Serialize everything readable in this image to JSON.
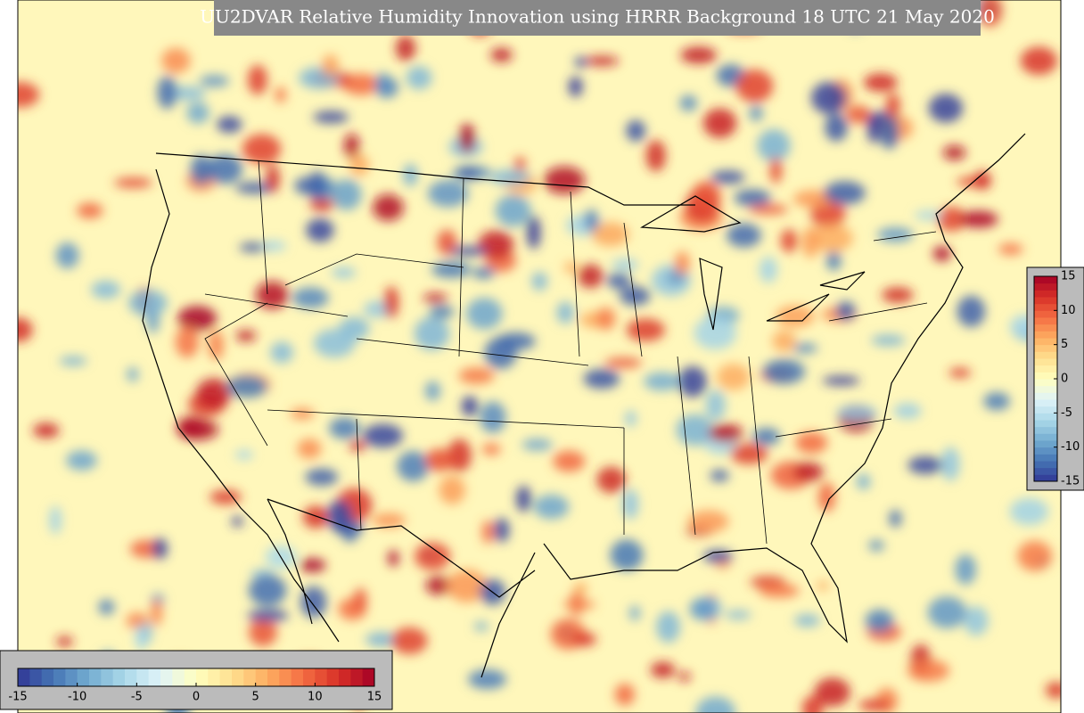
{
  "title": "UU2DVAR Relative Humidity Innovation using HRRR Background 18 UTC 21 May 2020",
  "colormap": [
    "#313695",
    "#4575b4",
    "#74add1",
    "#abd9e9",
    "#e0f3f8",
    "#ffffbf",
    "#fee090",
    "#fdae61",
    "#f46d43",
    "#d73027",
    "#a50026"
  ],
  "colorbars": [
    {
      "orientation": "horizontal",
      "lim": [
        -15,
        15
      ],
      "ticks": [
        -15,
        -10,
        -5,
        0,
        5,
        10,
        15
      ]
    },
    {
      "orientation": "vertical",
      "lim": [
        -15,
        15
      ],
      "ticks": [
        15,
        10,
        5,
        0,
        -5,
        -10,
        -15
      ]
    }
  ]
}
